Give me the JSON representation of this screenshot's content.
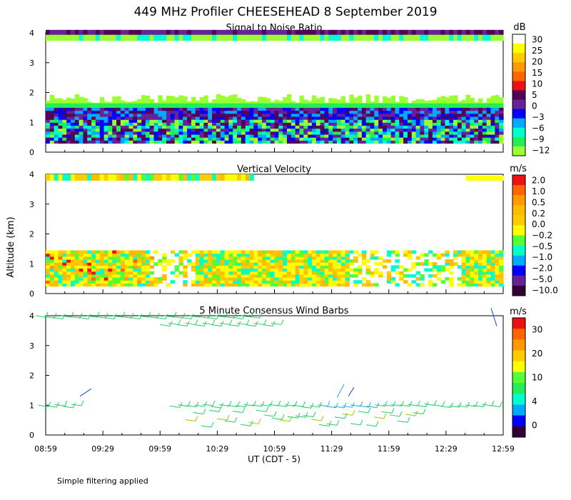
{
  "page_title": "449 MHz Profiler CHEESEHEAD  8 September 2019",
  "footnote": "Simple filtering applied",
  "y_axis_label": "Altitude (km)",
  "x_axis_label": "UT  (CDT - 5)",
  "x_ticks": [
    "08:59",
    "09:29",
    "09:59",
    "10:29",
    "10:59",
    "11:29",
    "11:59",
    "12:29",
    "12:59"
  ],
  "chart_data": [
    {
      "type": "heatmap",
      "title": "Signal to Noise Ratio",
      "ylim": [
        0,
        4
      ],
      "y_ticks": [
        "0",
        "1",
        "2",
        "3",
        "4"
      ],
      "colorbar": {
        "unit": "dB",
        "labels": [
          "30",
          "25",
          "20",
          "15",
          "10",
          "5",
          "0",
          "−3",
          "−6",
          "−9",
          "−12"
        ],
        "colors": [
          "#ffffff",
          "#ffff00",
          "#ffcc00",
          "#ff9900",
          "#ff6600",
          "#ee1111",
          "#550055",
          "#662299",
          "#0000ff",
          "#00aaff",
          "#00ffcc",
          "#22ee55",
          "#99ff33"
        ]
      }
    },
    {
      "type": "heatmap",
      "title": "Vertical Velocity",
      "ylim": [
        0,
        4
      ],
      "y_ticks": [
        "0",
        "1",
        "2",
        "3",
        "4"
      ],
      "colorbar": {
        "unit": "m/s",
        "labels": [
          "2.0",
          "1.0",
          "0.5",
          "0.2",
          "0.0",
          "−0.2",
          "−0.5",
          "−1.0",
          "−2.0",
          "−5.0",
          "−10.0"
        ],
        "colors": [
          "#ee1111",
          "#ff6600",
          "#ff9900",
          "#ffbb00",
          "#ffcc00",
          "#ffff00",
          "#55ff33",
          "#00ffcc",
          "#00aaff",
          "#0000ff",
          "#662299",
          "#330033"
        ]
      }
    },
    {
      "type": "scatter",
      "title": "5 Minute Consensus Wind Barbs",
      "ylim": [
        0,
        4
      ],
      "y_ticks": [
        "0",
        "1",
        "2",
        "3",
        "4"
      ],
      "colorbar": {
        "unit": "m/s",
        "labels": [
          "30",
          "20",
          "10",
          "4",
          "0"
        ],
        "colors": [
          "#ee1111",
          "#ff6600",
          "#ff9900",
          "#ffcc00",
          "#ffff00",
          "#55ff33",
          "#22ee55",
          "#00ffcc",
          "#00aaff",
          "#0000ff",
          "#330033"
        ]
      }
    }
  ]
}
